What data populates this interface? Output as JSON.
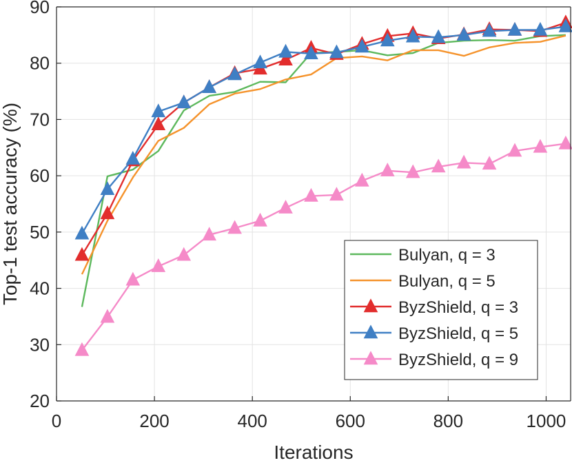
{
  "chart_data": {
    "type": "line",
    "xlabel": "Iterations",
    "ylabel": "Top-1 test accuracy (%)",
    "xlim": [
      0,
      1050
    ],
    "ylim": [
      20,
      90
    ],
    "xticks": [
      0,
      200,
      400,
      600,
      800,
      1000
    ],
    "yticks": [
      20,
      30,
      40,
      50,
      60,
      70,
      80,
      90
    ],
    "grid": true,
    "legend_position": "bottom-right",
    "series": [
      {
        "name": "Bulyan, q = 3",
        "color": "#5cb85c",
        "marker": "none",
        "x": [
          52,
          104,
          156,
          208,
          260,
          312,
          364,
          416,
          468,
          520,
          572,
          624,
          676,
          728,
          780,
          832,
          884,
          936,
          988,
          1040
        ],
        "y": [
          36.7,
          59.9,
          61.1,
          64.4,
          71.6,
          74.2,
          74.9,
          76.7,
          76.6,
          81.8,
          82.0,
          82.3,
          81.4,
          81.8,
          83.6,
          84.0,
          84.1,
          84.0,
          84.8,
          85.0
        ]
      },
      {
        "name": "Bulyan, q = 5",
        "color": "#f5922a",
        "marker": "none",
        "x": [
          52,
          104,
          156,
          208,
          260,
          312,
          364,
          416,
          468,
          520,
          572,
          624,
          676,
          728,
          780,
          832,
          884,
          936,
          988,
          1040
        ],
        "y": [
          42.5,
          52.0,
          59.7,
          66.2,
          68.5,
          72.7,
          74.6,
          75.4,
          77.1,
          78.0,
          80.9,
          81.2,
          80.5,
          82.3,
          82.3,
          81.3,
          82.8,
          83.6,
          83.8,
          84.9
        ]
      },
      {
        "name": "ByzShield, q = 3",
        "color": "#e22d2d",
        "marker": "triangle",
        "x": [
          52,
          104,
          156,
          208,
          260,
          312,
          364,
          416,
          468,
          520,
          572,
          624,
          676,
          728,
          780,
          832,
          884,
          936,
          988,
          1040
        ],
        "y": [
          45.9,
          53.3,
          62.7,
          69.1,
          73.0,
          75.7,
          78.2,
          79.0,
          80.6,
          82.7,
          81.6,
          83.4,
          84.8,
          85.3,
          84.4,
          85.1,
          86.0,
          85.9,
          85.7,
          87.2
        ]
      },
      {
        "name": "ByzShield, q = 5",
        "color": "#3f7fc4",
        "marker": "triangle",
        "x": [
          52,
          104,
          156,
          208,
          260,
          312,
          364,
          416,
          468,
          520,
          572,
          624,
          676,
          728,
          780,
          832,
          884,
          936,
          988,
          1040
        ],
        "y": [
          49.7,
          57.6,
          63.0,
          71.4,
          73.0,
          75.7,
          78.0,
          80.1,
          82.0,
          81.7,
          81.9,
          82.9,
          84.0,
          84.7,
          84.6,
          85.0,
          85.7,
          85.9,
          85.9,
          86.5
        ]
      },
      {
        "name": "ByzShield, q = 9",
        "color": "#f58ac8",
        "marker": "triangle",
        "x": [
          52,
          104,
          156,
          208,
          260,
          312,
          364,
          416,
          468,
          520,
          572,
          624,
          676,
          728,
          780,
          832,
          884,
          936,
          988,
          1040
        ],
        "y": [
          29.0,
          34.9,
          41.5,
          43.9,
          45.9,
          49.5,
          50.7,
          52.0,
          54.3,
          56.4,
          56.6,
          59.1,
          60.9,
          60.6,
          61.6,
          62.3,
          62.1,
          64.4,
          65.1,
          65.7
        ]
      }
    ]
  }
}
